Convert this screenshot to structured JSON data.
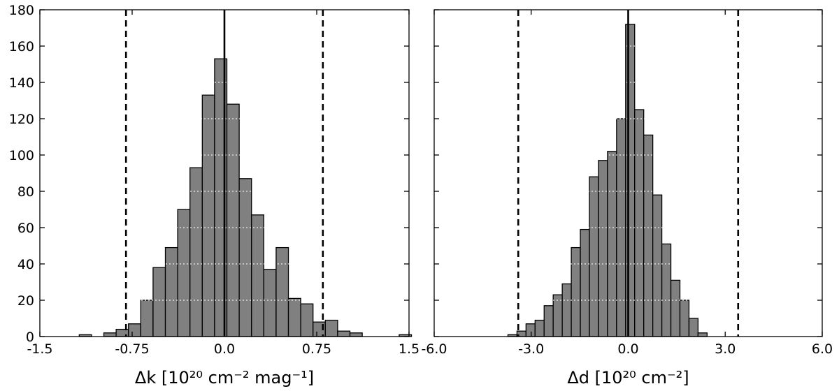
{
  "chart_data": [
    {
      "type": "bar",
      "xlim": [
        -1.5,
        1.5
      ],
      "ylim": [
        0,
        180
      ],
      "xticks": [
        -1.5,
        -0.75,
        0.0,
        0.75,
        1.5
      ],
      "xtick_labels": [
        "-1.5",
        "-0.75",
        "0.0",
        "0.75",
        "1.5"
      ],
      "yticks": [
        0,
        20,
        40,
        60,
        80,
        100,
        120,
        140,
        160,
        180
      ],
      "ytick_labels": [
        "0",
        "20",
        "40",
        "60",
        "80",
        "100",
        "120",
        "140",
        "160",
        "180"
      ],
      "xlabel": "Δk [10²⁰ cm⁻² mag⁻¹]",
      "bin_width": 0.1,
      "bins": [
        {
          "x0": -1.18,
          "x1": -1.08,
          "value": 1
        },
        {
          "x0": -0.98,
          "x1": -0.88,
          "value": 2
        },
        {
          "x0": -0.88,
          "x1": -0.78,
          "value": 4
        },
        {
          "x0": -0.78,
          "x1": -0.68,
          "value": 7
        },
        {
          "x0": -0.68,
          "x1": -0.58,
          "value": 20
        },
        {
          "x0": -0.58,
          "x1": -0.48,
          "value": 38
        },
        {
          "x0": -0.48,
          "x1": -0.38,
          "value": 49
        },
        {
          "x0": -0.38,
          "x1": -0.28,
          "value": 70
        },
        {
          "x0": -0.28,
          "x1": -0.18,
          "value": 93
        },
        {
          "x0": -0.18,
          "x1": -0.08,
          "value": 133
        },
        {
          "x0": -0.08,
          "x1": 0.02,
          "value": 153
        },
        {
          "x0": 0.02,
          "x1": 0.12,
          "value": 128
        },
        {
          "x0": 0.12,
          "x1": 0.22,
          "value": 87
        },
        {
          "x0": 0.22,
          "x1": 0.32,
          "value": 67
        },
        {
          "x0": 0.32,
          "x1": 0.42,
          "value": 37
        },
        {
          "x0": 0.42,
          "x1": 0.52,
          "value": 49
        },
        {
          "x0": 0.52,
          "x1": 0.62,
          "value": 21
        },
        {
          "x0": 0.62,
          "x1": 0.72,
          "value": 18
        },
        {
          "x0": 0.72,
          "x1": 0.82,
          "value": 8
        },
        {
          "x0": 0.82,
          "x1": 0.92,
          "value": 9
        },
        {
          "x0": 0.92,
          "x1": 1.02,
          "value": 3
        },
        {
          "x0": 1.02,
          "x1": 1.12,
          "value": 2
        },
        {
          "x0": 1.42,
          "x1": 1.52,
          "value": 1
        }
      ],
      "solid_line_x": 0.0,
      "dashed_lines_x": [
        -0.8,
        0.8
      ],
      "horizontal_grid": "white dotted, drawn across bars"
    },
    {
      "type": "bar",
      "xlim": [
        -6.0,
        6.0
      ],
      "ylim": [
        0,
        180
      ],
      "xticks": [
        -6.0,
        -3.0,
        0.0,
        3.0,
        6.0
      ],
      "xtick_labels": [
        "-6.0",
        "-3.0",
        "0.0",
        "3.0",
        "6.0"
      ],
      "yticks": [
        0,
        20,
        40,
        60,
        80,
        100,
        120,
        140,
        160,
        180
      ],
      "ytick_labels": [],
      "xlabel": "Δd [10²⁰ cm⁻²]",
      "bin_width": 0.28,
      "bins": [
        {
          "x0": -3.72,
          "x1": -3.44,
          "value": 1
        },
        {
          "x0": -3.44,
          "x1": -3.16,
          "value": 3
        },
        {
          "x0": -3.16,
          "x1": -2.88,
          "value": 7
        },
        {
          "x0": -2.88,
          "x1": -2.6,
          "value": 9
        },
        {
          "x0": -2.6,
          "x1": -2.32,
          "value": 17
        },
        {
          "x0": -2.32,
          "x1": -2.04,
          "value": 23
        },
        {
          "x0": -2.04,
          "x1": -1.76,
          "value": 29
        },
        {
          "x0": -1.76,
          "x1": -1.48,
          "value": 49
        },
        {
          "x0": -1.48,
          "x1": -1.2,
          "value": 59
        },
        {
          "x0": -1.2,
          "x1": -0.92,
          "value": 88
        },
        {
          "x0": -0.92,
          "x1": -0.64,
          "value": 97
        },
        {
          "x0": -0.64,
          "x1": -0.36,
          "value": 102
        },
        {
          "x0": -0.36,
          "x1": -0.08,
          "value": 120
        },
        {
          "x0": -0.08,
          "x1": 0.2,
          "value": 172
        },
        {
          "x0": 0.2,
          "x1": 0.48,
          "value": 125
        },
        {
          "x0": 0.48,
          "x1": 0.76,
          "value": 111
        },
        {
          "x0": 0.76,
          "x1": 1.04,
          "value": 78
        },
        {
          "x0": 1.04,
          "x1": 1.32,
          "value": 51
        },
        {
          "x0": 1.32,
          "x1": 1.6,
          "value": 31
        },
        {
          "x0": 1.6,
          "x1": 1.88,
          "value": 20
        },
        {
          "x0": 1.88,
          "x1": 2.16,
          "value": 10
        },
        {
          "x0": 2.16,
          "x1": 2.44,
          "value": 2
        }
      ],
      "solid_line_x": 0.0,
      "dashed_lines_x": [
        -3.4,
        3.4
      ],
      "horizontal_grid": "white dotted, drawn across bars"
    }
  ],
  "colors": {
    "bar_fill": "#808080",
    "bar_edge": "#000000",
    "grid": "#ffffff",
    "background": "#ffffff"
  }
}
